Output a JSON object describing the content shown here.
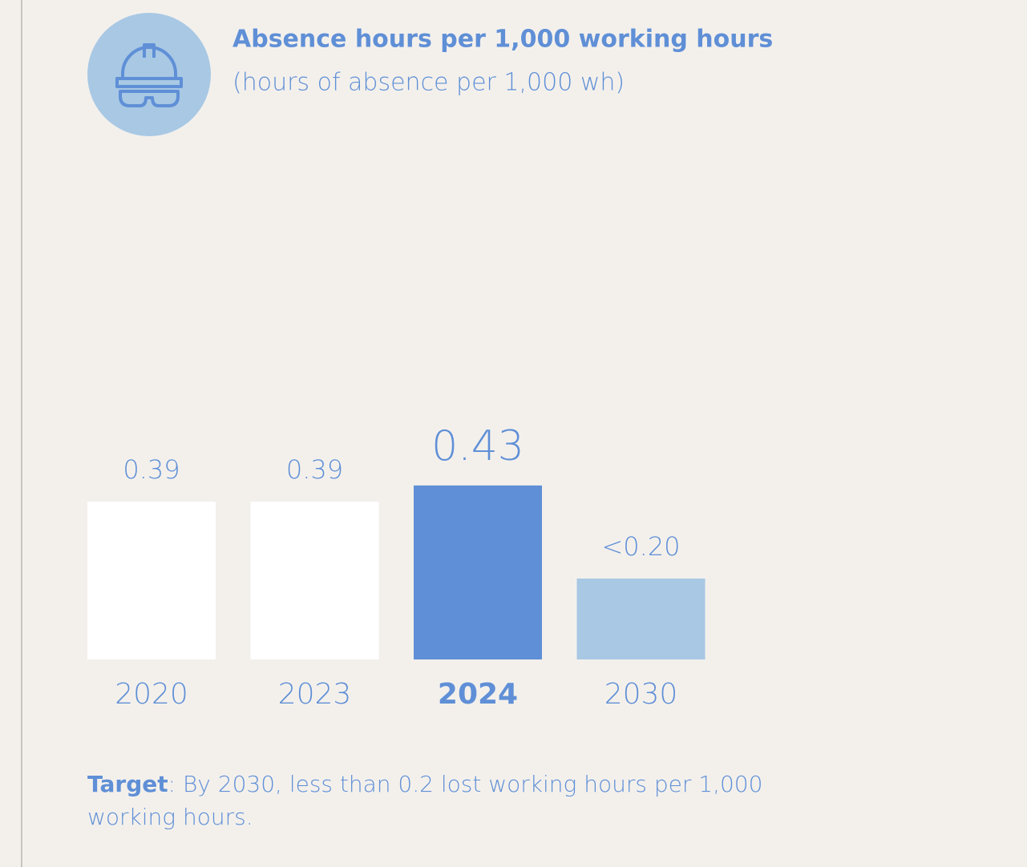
{
  "chart_data": {
    "type": "bar",
    "title": "Absence hours per 1,000 working hours",
    "subtitle": "(hours of absence per 1,000 wh)",
    "categories": [
      "2020",
      "2023",
      "2024",
      "2030"
    ],
    "values": [
      0.39,
      0.39,
      0.43,
      0.2
    ],
    "value_labels": [
      "0.39",
      "0.39",
      "0.43",
      "<0.20"
    ],
    "colors": [
      "#ffffff",
      "#ffffff",
      "#5f8fd6",
      "#a8c8e4"
    ],
    "note": {
      "label": "Target",
      "text": ": By 2030, less than 0.2 lost working hours per 1,000 working hours."
    }
  }
}
